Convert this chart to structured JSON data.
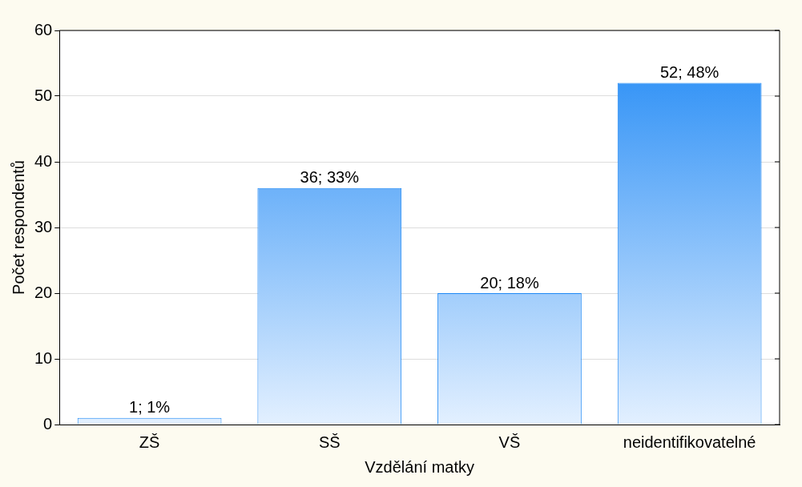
{
  "chart_data": {
    "type": "bar",
    "xlabel": "Vzdělání matky",
    "ylabel": "Počet respondentů",
    "categories": [
      "ZŠ",
      "SŠ",
      "VŠ",
      "neidentifikovatelné"
    ],
    "values": [
      1,
      36,
      20,
      52
    ],
    "value_labels": [
      "1; 1%",
      "36; 33%",
      "20; 18%",
      "52; 48%"
    ],
    "color": "#1e88f5",
    "ylim": [
      0,
      60
    ],
    "yticks": [
      0,
      10,
      20,
      30,
      40,
      50,
      60
    ],
    "grid": "y"
  }
}
